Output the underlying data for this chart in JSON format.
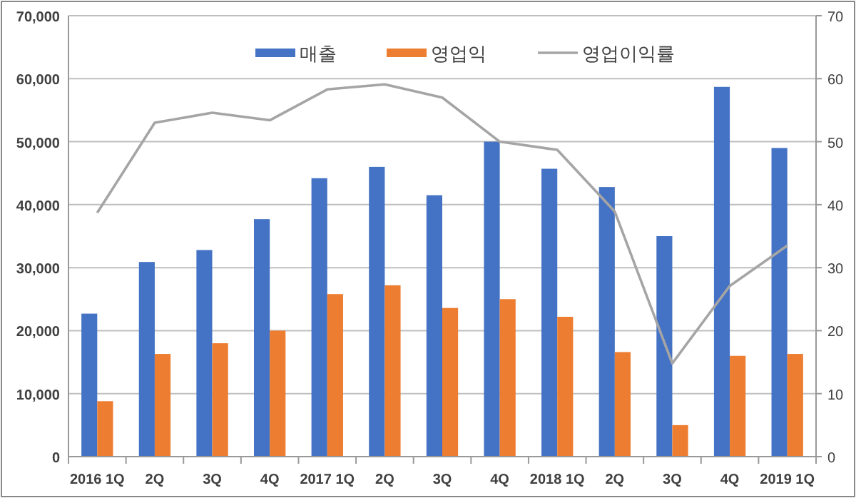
{
  "chart_data": {
    "type": "bar",
    "categories": [
      "2016 1Q",
      "2Q",
      "3Q",
      "4Q",
      "2017 1Q",
      "2Q",
      "3Q",
      "4Q",
      "2018 1Q",
      "2Q",
      "3Q",
      "4Q",
      "2019 1Q"
    ],
    "series": [
      {
        "name": "매출",
        "color": "#4472c4",
        "values": [
          22700,
          30900,
          32800,
          37700,
          44200,
          46000,
          41500,
          50000,
          45700,
          42800,
          35000,
          58700,
          49000
        ]
      },
      {
        "name": "영업익",
        "color": "#ed7d31",
        "values": [
          8800,
          16300,
          18000,
          20000,
          25800,
          27200,
          23600,
          25000,
          22200,
          16600,
          5000,
          16000,
          16300
        ]
      },
      {
        "name": "영업이익률",
        "type": "line",
        "axis": "y2",
        "color": "#a5a5a5",
        "values": [
          38.7,
          53.0,
          54.6,
          53.4,
          58.3,
          59.1,
          57.0,
          50.0,
          48.7,
          38.9,
          14.8,
          27.1,
          33.5
        ]
      }
    ],
    "ylim": [
      0,
      70000
    ],
    "yticks": [
      0,
      {
        "value": 10000,
        "label": "10,000"
      },
      {
        "value": 20000,
        "label": "20,000"
      },
      {
        "value": 30000,
        "label": "30,000"
      },
      {
        "value": 40000,
        "label": "40,000"
      },
      {
        "value": 50000,
        "label": "50,000"
      },
      {
        "value": 60000,
        "label": "60,000"
      },
      {
        "value": 70000,
        "label": "70,000"
      }
    ],
    "y2lim": [
      0,
      70
    ],
    "y2ticks": [
      0,
      10,
      20,
      30,
      40,
      50,
      60,
      70
    ],
    "grid": "y",
    "legend": "top",
    "marker": "none"
  }
}
